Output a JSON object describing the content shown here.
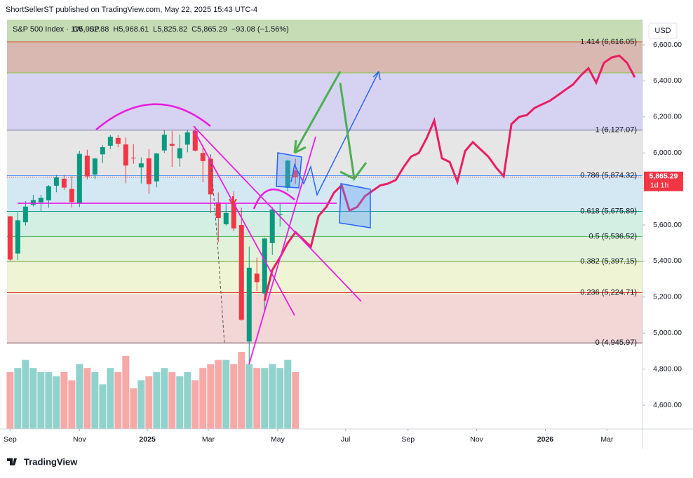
{
  "header": {
    "publisher": "ShortSellerST published on TradingView.com, May 22, 2025 15:43 UTC-4"
  },
  "footer": {
    "brand": "TradingView"
  },
  "chart_data": {
    "type": "candlestick",
    "title": "S&P 500 Index · 1W · SP",
    "ohlc_legend": [
      "O5,902.88",
      "H5,968.61",
      "L5,825.82",
      "C5,865.29",
      "−93.08 (−1.56%)"
    ],
    "axis_unit": "USD",
    "ylim": [
      4468,
      6740
    ],
    "yticks": [
      {
        "value": 4600,
        "label": "4,600.00"
      },
      {
        "value": 4800,
        "label": "4,800.00"
      },
      {
        "value": 5000,
        "label": "5,000.00"
      },
      {
        "value": 5200,
        "label": "5,200.00"
      },
      {
        "value": 5400,
        "label": "5,400.00"
      },
      {
        "value": 5600,
        "label": "5,600.00"
      },
      {
        "value": 5800,
        "label": "5,800.00"
      },
      {
        "value": 6000,
        "label": "6,000.00"
      },
      {
        "value": 6200,
        "label": "6,200.00"
      },
      {
        "value": 6400,
        "label": "6,400.00"
      },
      {
        "value": 6600,
        "label": "6,600.00"
      }
    ],
    "xlim": [
      -0.4,
      82
    ],
    "xticks": [
      {
        "value": 0,
        "label": "Sep"
      },
      {
        "value": 9,
        "label": "Nov"
      },
      {
        "value": 17.8,
        "label": "2025"
      },
      {
        "value": 25.7,
        "label": "Mar"
      },
      {
        "value": 34.7,
        "label": "May"
      },
      {
        "value": 43.5,
        "label": "Jul"
      },
      {
        "value": 51.6,
        "label": "Sep"
      },
      {
        "value": 60.5,
        "label": "Nov"
      },
      {
        "value": 69.4,
        "label": "2026"
      },
      {
        "value": 77.4,
        "label": "Mar"
      }
    ],
    "candles": {
      "up_color": "#089981",
      "down_color": "#f23645",
      "open": [
        5648,
        5442,
        5615,
        5712,
        5726,
        5737,
        5818,
        5857,
        5800,
        5722,
        5985,
        5880,
        5992,
        6040,
        6083,
        6047,
        5974,
        5920,
        5970,
        5842,
        6014,
        6050,
        5970,
        6046,
        6121,
        6000,
        5968,
        5726,
        5604,
        5718,
        5600,
        4953,
        5330,
        5220,
        5500,
        5655,
        5807,
        5902.88
      ],
      "high": [
        5651,
        5670,
        5733,
        5767,
        5767,
        5822,
        5878,
        5878,
        5871,
        6012,
        6018,
        5972,
        6044,
        6099,
        6098,
        6085,
        6050,
        5975,
        6021,
        6000,
        6128,
        6120,
        6101,
        6127,
        6147,
        6044,
        5987,
        5781,
        5716,
        5787,
        5696,
        5481,
        5419,
        5528,
        5700,
        5720,
        5963,
        5968.61
      ],
      "low": [
        5402,
        5406,
        5597,
        5703,
        5674,
        5696,
        5782,
        5795,
        5696,
        5700,
        5853,
        5855,
        5944,
        6023,
        6031,
        5832,
        5940,
        5830,
        5773,
        5809,
        6000,
        5923,
        5923,
        6003,
        6008,
        5837,
        5666,
        5505,
        5597,
        5566,
        5069,
        4835,
        5233,
        5120,
        5433,
        5590,
        5786,
        5825.82
      ],
      "close": [
        5408,
        5626,
        5702,
        5738,
        5751,
        5815,
        5864,
        5808,
        5728,
        5995,
        5870,
        5969,
        6032,
        6090,
        6051,
        5930,
        5970,
        5942,
        5827,
        5997,
        6101,
        6040,
        6026,
        6114,
        6013,
        5955,
        5770,
        5639,
        5667,
        5581,
        5074,
        5363,
        5283,
        5525,
        5686,
        5660,
        5958,
        5865.29
      ]
    },
    "volume": [
      14,
      15,
      17,
      15,
      14,
      14,
      13,
      14,
      12,
      16,
      15,
      14,
      11,
      15,
      14,
      18,
      10,
      12,
      13,
      14,
      15,
      14,
      13,
      14,
      12,
      15,
      16,
      17,
      17,
      16,
      19,
      16,
      15,
      15,
      16,
      15,
      17,
      14
    ],
    "projection": {
      "color": "#e91e63",
      "values": [
        null,
        null,
        null,
        null,
        null,
        null,
        null,
        null,
        null,
        null,
        null,
        null,
        null,
        null,
        null,
        null,
        null,
        null,
        null,
        null,
        null,
        null,
        null,
        null,
        null,
        null,
        null,
        null,
        null,
        null,
        null,
        null,
        null,
        5180,
        5350,
        5420,
        5500,
        5560,
        5520,
        5480,
        5650,
        5700,
        5780,
        5820,
        5680,
        5700,
        5760,
        5790,
        5820,
        5830,
        5850,
        5920,
        5980,
        6000,
        6080,
        6180,
        5970,
        5950,
        5840,
        6010,
        6060,
        6020,
        5980,
        5920,
        5870,
        6160,
        6200,
        6210,
        6250,
        6270,
        6290,
        6320,
        6350,
        6380,
        6430,
        6470,
        6390,
        6500,
        6530,
        6540,
        6500,
        6420
      ]
    },
    "fib_levels": [
      {
        "value": 6616.05,
        "label": "1.414 (6,616.05)",
        "color": "#e53935"
      },
      {
        "value": 6127.07,
        "label": "1 (6,127.07)",
        "color": "#787b86"
      },
      {
        "value": 5874.32,
        "label": "0.786 (5,874.32)",
        "color": "#5b9cf6"
      },
      {
        "value": 5675.89,
        "label": "0.618 (5,675.89)",
        "color": "#089981"
      },
      {
        "value": 5536.52,
        "label": "0.5 (5,536.52)",
        "color": "#4caf50"
      },
      {
        "value": 5397.15,
        "label": "0.382 (5,397.15)",
        "color": "#81a630"
      },
      {
        "value": 5224.71,
        "label": "0.236 (5,224.71)",
        "color": "#e53935"
      },
      {
        "value": 4945.97,
        "label": "0 (4,945.97)",
        "color": "#787b86"
      }
    ],
    "price_tag": {
      "value": 5865.29,
      "label": "5,865.29",
      "countdown": "1d 1h",
      "color": "#f23645"
    }
  }
}
